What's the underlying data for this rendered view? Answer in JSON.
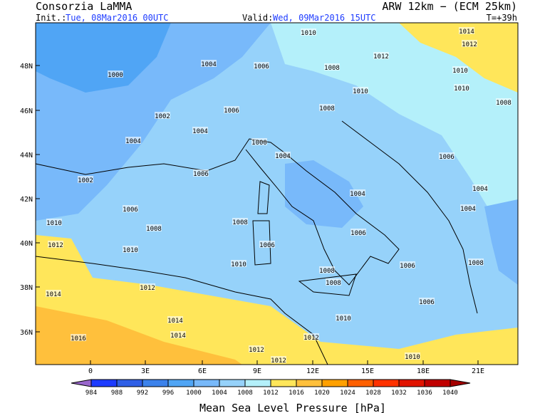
{
  "header": {
    "title": "Consorzia LaMMA",
    "model": "ARW 12km − (ECM 25km)",
    "init_label": "Init.:",
    "init_value": "Tue, 08Mar2016 00UTC",
    "valid_label": "Valid:",
    "valid_value": "Wed, 09Mar2016 15UTC",
    "step": "T=+39h"
  },
  "lat_labels": [
    "48N",
    "46N",
    "44N",
    "42N",
    "40N",
    "38N",
    "36N"
  ],
  "lon_labels": [
    "0",
    "3E",
    "6E",
    "9E",
    "12E",
    "15E",
    "18E",
    "21E"
  ],
  "contour_labels": [
    "1010",
    "1012",
    "1012",
    "1014",
    "1000",
    "1004",
    "1006",
    "1008",
    "1010",
    "1010",
    "1010",
    "1008",
    "1002",
    "1006",
    "1008",
    "1004",
    "1004",
    "1000",
    "1004",
    "1006",
    "1006",
    "1002",
    "1004",
    "1004",
    "1006",
    "1004",
    "1010",
    "1008",
    "1008",
    "1006",
    "1012",
    "1010",
    "1006",
    "1010",
    "1006",
    "1008",
    "1008",
    "1012",
    "1008",
    "1014",
    "1006",
    "1010",
    "1014",
    "1014",
    "1016",
    "1012",
    "1012",
    "1012",
    "1010"
  ],
  "colorbar": {
    "ticks": [
      "984",
      "988",
      "992",
      "996",
      "1000",
      "1004",
      "1008",
      "1012",
      "1016",
      "1020",
      "1024",
      "1028",
      "1032",
      "1036",
      "1040"
    ],
    "title": "Mean Sea Level Pressure [hPa]"
  }
}
